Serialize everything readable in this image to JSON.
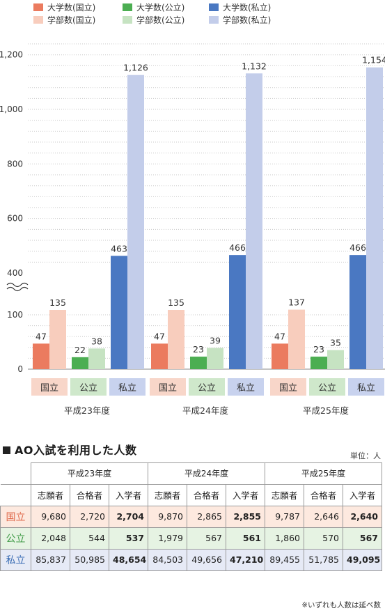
{
  "chart_data": {
    "type": "bar",
    "legend": {
      "placement": "top",
      "items": [
        {
          "label": "大学数(国立)",
          "color": "#eb7b5f"
        },
        {
          "label": "大学数(公立)",
          "color": "#4cae52"
        },
        {
          "label": "大学数(私立)",
          "color": "#4a78c2"
        },
        {
          "label": "学部数(国立)",
          "color": "#f8cdbd"
        },
        {
          "label": "学部数(公立)",
          "color": "#c6e3c2"
        },
        {
          "label": "学部数(私立)",
          "color": "#c3cdea"
        }
      ]
    },
    "y_ticks": [
      "0",
      "100",
      "400",
      "600",
      "800",
      "1,000",
      "1,200"
    ],
    "axis_break": "100〜400",
    "grid": true,
    "groups": [
      {
        "label": "平成23年度",
        "categories": [
          "国立",
          "公立",
          "私立"
        ],
        "universities": [
          47,
          22,
          463
        ],
        "faculties": [
          135,
          38,
          1126
        ],
        "university_labels": [
          "47",
          "22",
          "463"
        ],
        "faculty_labels": [
          "135",
          "38",
          "1,126"
        ]
      },
      {
        "label": "平成24年度",
        "categories": [
          "国立",
          "公立",
          "私立"
        ],
        "universities": [
          47,
          23,
          466
        ],
        "faculties": [
          135,
          39,
          1132
        ],
        "university_labels": [
          "47",
          "23",
          "466"
        ],
        "faculty_labels": [
          "135",
          "39",
          "1,132"
        ]
      },
      {
        "label": "平成25年度",
        "categories": [
          "国立",
          "公立",
          "私立"
        ],
        "universities": [
          47,
          23,
          466
        ],
        "faculties": [
          137,
          35,
          1154
        ],
        "university_labels": [
          "47",
          "23",
          "466"
        ],
        "faculty_labels": [
          "137",
          "35",
          "1,154"
        ]
      }
    ],
    "category_colors": {
      "national_bg": "#f8d6c9",
      "national_text": "#333333",
      "public_bg": "#cfe8cb",
      "public_text": "#333333",
      "private_bg": "#c8d2ee",
      "private_text": "#333333"
    }
  },
  "section": {
    "title": "AO入試を利用した人数",
    "unit": "単位：人",
    "footnote": "※いずれも人数は延べ数"
  },
  "table": {
    "years": [
      "平成23年度",
      "平成24年度",
      "平成25年度"
    ],
    "columns": [
      "志願者",
      "合格者",
      "入学者"
    ],
    "rows": [
      {
        "label": "国立",
        "values": [
          "9,680",
          "2,720",
          "2,704",
          "9,870",
          "2,865",
          "2,855",
          "9,787",
          "2,646",
          "2,640"
        ]
      },
      {
        "label": "公立",
        "values": [
          "2,048",
          "544",
          "537",
          "1,979",
          "567",
          "561",
          "1,860",
          "570",
          "567"
        ]
      },
      {
        "label": "私立",
        "values": [
          "85,837",
          "50,985",
          "48,654",
          "84,503",
          "49,656",
          "47,210",
          "89,455",
          "51,785",
          "49,095"
        ]
      }
    ]
  }
}
